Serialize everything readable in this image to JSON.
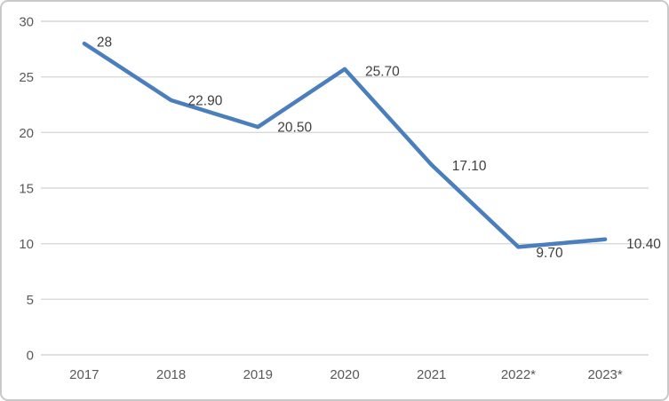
{
  "chart_data": {
    "type": "line",
    "title": "",
    "xlabel": "",
    "ylabel": "",
    "categories": [
      "2017",
      "2018",
      "2019",
      "2020",
      "2021",
      "2022*",
      "2023*"
    ],
    "values": [
      28,
      22.9,
      20.5,
      25.7,
      17.1,
      9.7,
      10.4
    ],
    "data_labels": [
      "28",
      "22.90",
      "20.50",
      "25.70",
      "17.10",
      "9.70",
      "10.40"
    ],
    "ylim": [
      0,
      30
    ],
    "yticks": [
      0,
      5,
      10,
      15,
      20,
      25,
      30
    ],
    "grid": true,
    "legend": false,
    "colors": {
      "line": "#4A7EBC",
      "gridline": "#D9D9D9",
      "axis_tick_label": "#595959",
      "data_label": "#3F3F3F",
      "frame_border": "#C9C9C9",
      "background": "#FFFFFF"
    }
  }
}
